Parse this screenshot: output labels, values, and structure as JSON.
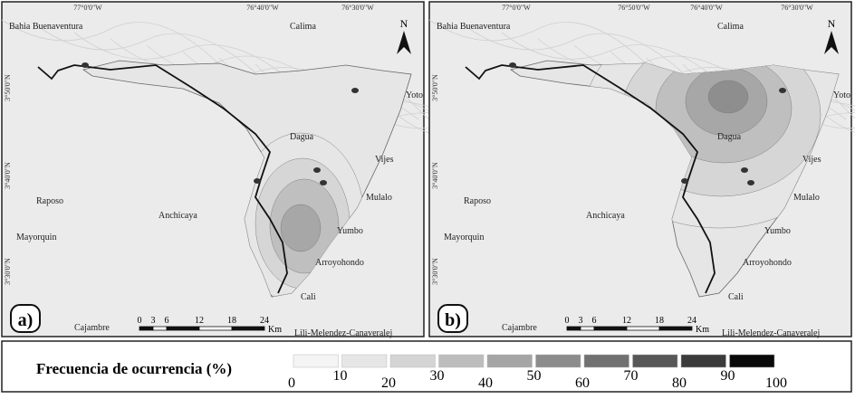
{
  "panels": [
    {
      "label": "a)",
      "north": "N",
      "lon_ticks": [
        "77°0'0\"W",
        "76°40'0\"W",
        "76°30'0\"W"
      ],
      "lat_ticks": [
        "3°50'0\"N",
        "3°40'0\"N",
        "3°30'0\"N"
      ],
      "places": [
        "Bahia Buenaventura",
        "Calima",
        "Yoto",
        "Dagua",
        "Vijes",
        "Raposo",
        "Mulalo",
        "Anchicaya",
        "Yumbo",
        "Mayorquin",
        "Arroyohondo",
        "Cali",
        "Cajambre",
        "Lili-Melendez-Canaveralej"
      ],
      "scale": {
        "ticks": [
          "0",
          "3",
          "6",
          "12",
          "18",
          "24"
        ],
        "unit": "Km"
      }
    },
    {
      "label": "b)",
      "north": "N",
      "lon_ticks": [
        "77°0'0\"W",
        "76°50'0\"W",
        "76°40'0\"W",
        "76°30'0\"W"
      ],
      "lat_ticks": [
        "3°50'0\"N",
        "3°40'0\"N",
        "3°30'0\"N"
      ],
      "places": [
        "Bahia Buenaventura",
        "Calima",
        "Yoto",
        "Dagua",
        "Vijes",
        "Raposo",
        "Mulalo",
        "Anchicaya",
        "Yumbo",
        "Mayorquin",
        "Arroyohondo",
        "Cali",
        "Cajambre",
        "Lili-Melendez-Canaveralej"
      ],
      "scale": {
        "ticks": [
          "0",
          "3",
          "6",
          "12",
          "18",
          "24"
        ],
        "unit": "Km"
      }
    }
  ],
  "legend": {
    "title": "Frecuencia de ocurrencia (%)",
    "labels": [
      "0",
      "10",
      "20",
      "30",
      "40",
      "50",
      "60",
      "70",
      "80",
      "90",
      "100"
    ],
    "colors": [
      "#f4f4f4",
      "#e6e6e6",
      "#d4d4d4",
      "#bdbdbd",
      "#a5a5a5",
      "#8c8c8c",
      "#717171",
      "#575757",
      "#3b3b3b",
      "#0a0a0a"
    ]
  }
}
